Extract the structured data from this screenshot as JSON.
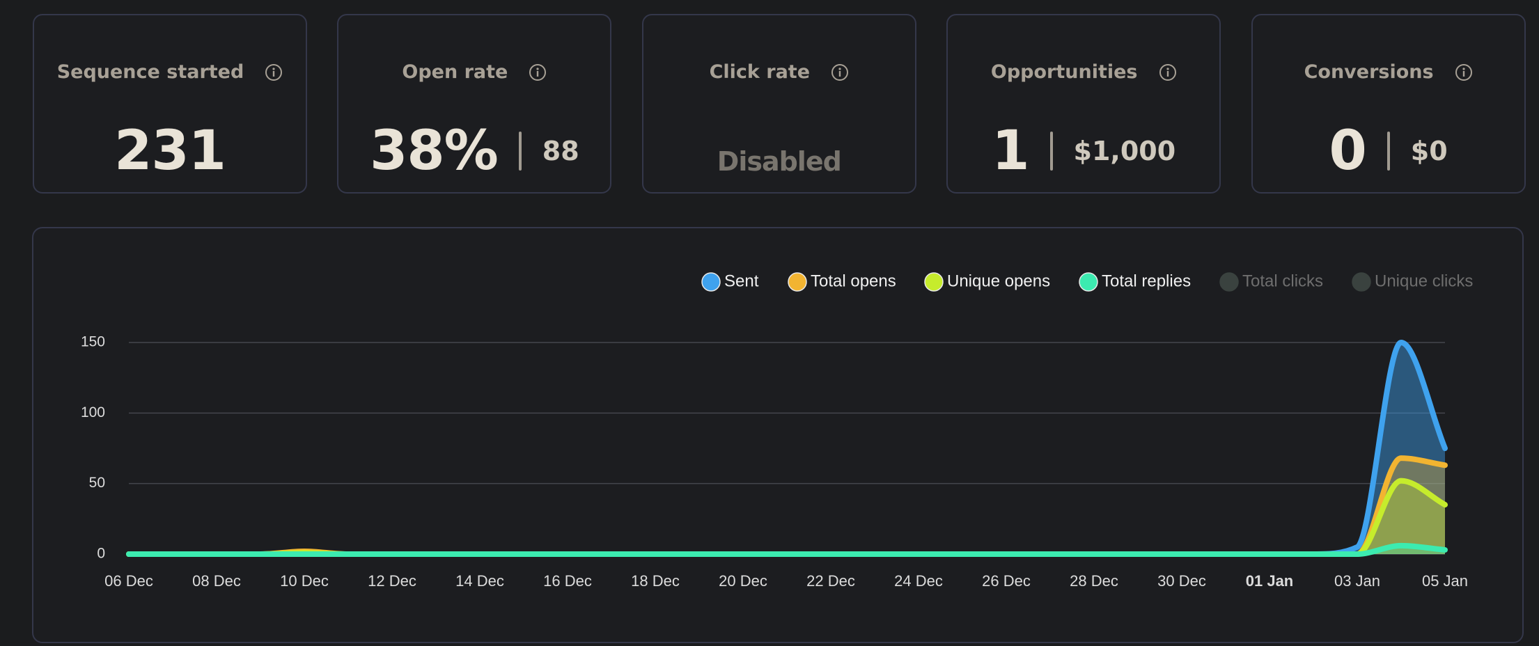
{
  "cards": [
    {
      "title": "Sequence started",
      "value": "231"
    },
    {
      "title": "Open rate",
      "value": "38%",
      "secondary": "88"
    },
    {
      "title": "Click rate",
      "value": "Disabled"
    },
    {
      "title": "Opportunities",
      "value": "1",
      "secondary": "$1,000"
    },
    {
      "title": "Conversions",
      "value": "0",
      "secondary": "$0"
    }
  ],
  "chart_data": {
    "type": "area",
    "categories": [
      "06 Dec",
      null,
      "08 Dec",
      null,
      "10 Dec",
      null,
      "12 Dec",
      null,
      "14 Dec",
      null,
      "16 Dec",
      null,
      "18 Dec",
      null,
      "20 Dec",
      null,
      "22 Dec",
      null,
      "24 Dec",
      null,
      "26 Dec",
      null,
      "28 Dec",
      null,
      "30 Dec",
      null,
      "01 Jan",
      null,
      "03 Jan",
      null,
      "05 Jan"
    ],
    "series": [
      {
        "name": "Sent",
        "color": "#3fa2ee",
        "values": [
          0,
          0,
          0,
          0,
          1,
          0,
          0,
          0,
          0,
          0,
          0,
          0,
          0,
          0,
          0,
          0,
          0,
          0,
          0,
          0,
          0,
          0,
          0,
          0,
          0,
          0,
          0,
          0,
          5,
          150,
          75
        ]
      },
      {
        "name": "Total opens",
        "color": "#f2b431",
        "values": [
          0,
          0,
          0,
          0,
          2,
          0,
          0,
          0,
          0,
          0,
          0,
          0,
          0,
          0,
          0,
          0,
          0,
          0,
          0,
          0,
          0,
          0,
          0,
          0,
          0,
          0,
          0,
          0,
          0,
          68,
          63
        ]
      },
      {
        "name": "Unique opens",
        "color": "#c6ec2c",
        "values": [
          0,
          0,
          0,
          0,
          1,
          0,
          0,
          0,
          0,
          0,
          0,
          0,
          0,
          0,
          0,
          0,
          0,
          0,
          0,
          0,
          0,
          0,
          0,
          0,
          0,
          0,
          0,
          0,
          0,
          52,
          35
        ]
      },
      {
        "name": "Total replies",
        "color": "#3cebb0",
        "values": [
          0,
          0,
          0,
          0,
          0,
          0,
          0,
          0,
          0,
          0,
          0,
          0,
          0,
          0,
          0,
          0,
          0,
          0,
          0,
          0,
          0,
          0,
          0,
          0,
          0,
          0,
          0,
          0,
          0,
          6,
          3
        ]
      },
      {
        "name": "Total clicks",
        "color": "#3a423f",
        "visible": false
      },
      {
        "name": "Unique clicks",
        "color": "#3a423f",
        "visible": false
      }
    ],
    "ylim": [
      0,
      150
    ],
    "yticks": [
      0,
      50,
      100,
      150
    ],
    "grid": true,
    "legend": "top-right"
  }
}
